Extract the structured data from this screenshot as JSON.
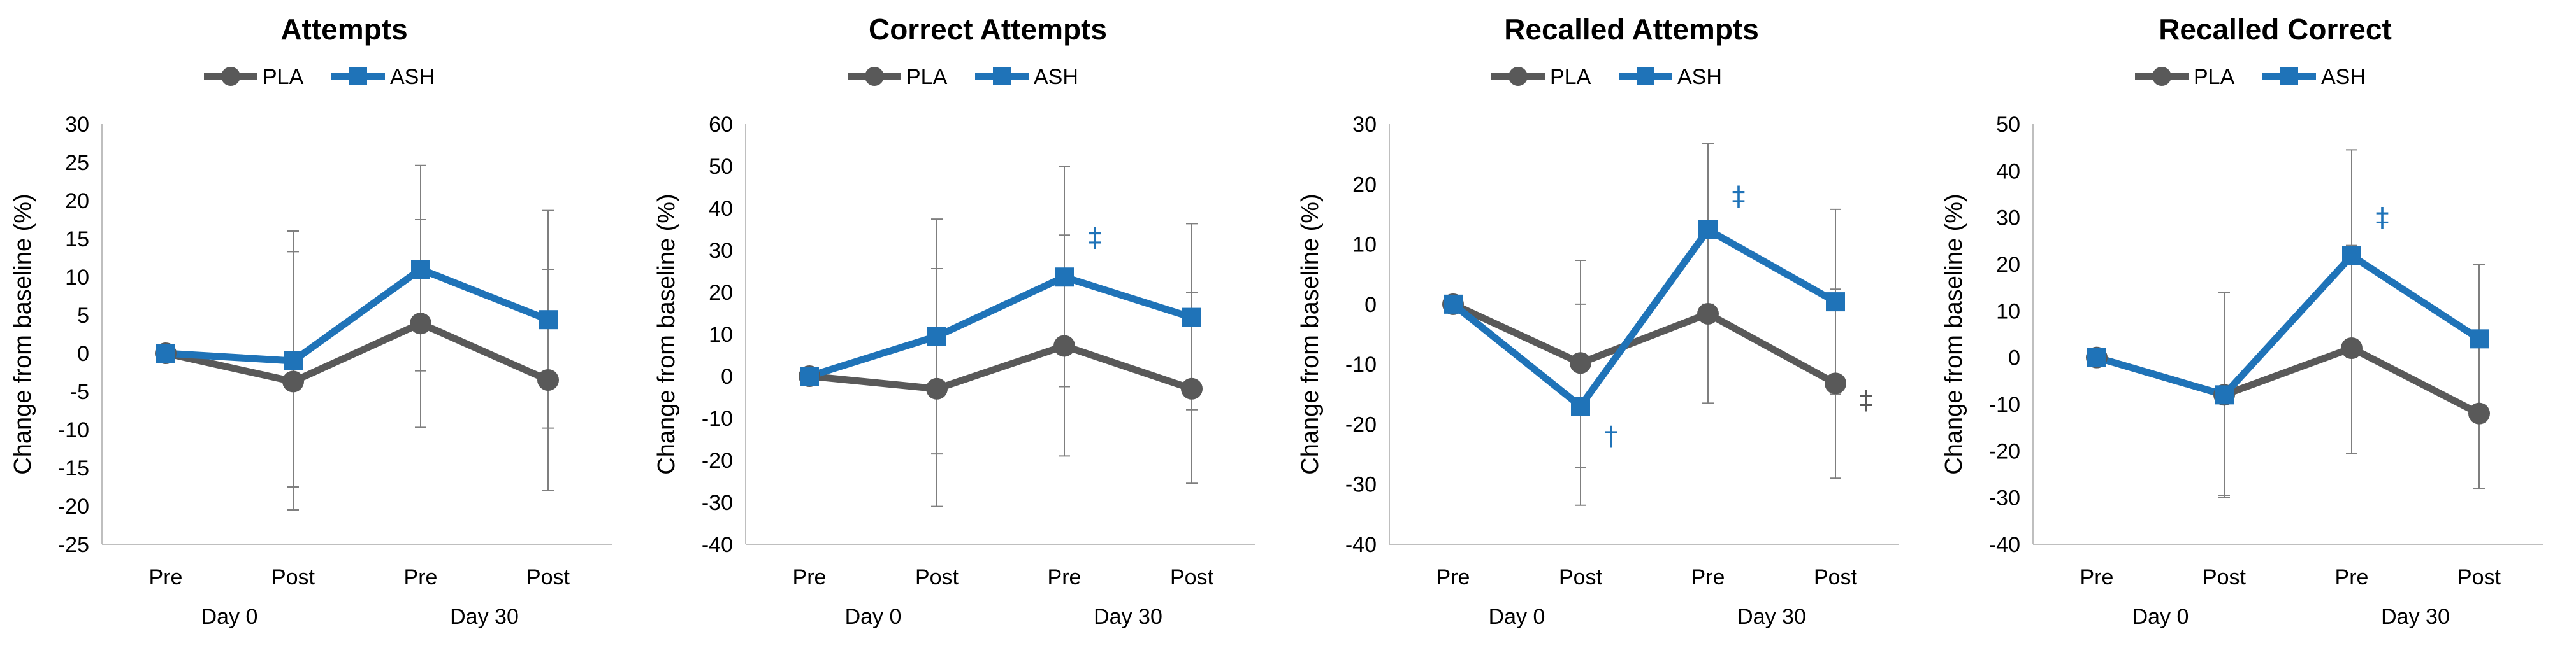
{
  "figure": {
    "series_colors": {
      "PLA": "#595959",
      "ASH": "#1F73B8"
    },
    "annotation_color_blue": "#1F73B8",
    "annotation_color_gray": "#595959"
  },
  "chart_data": [
    {
      "type": "line",
      "title": "Attempts",
      "xlabel": "",
      "ylabel": "Change from baseline (%)",
      "categories": [
        "Pre",
        "Post",
        "Pre",
        "Post"
      ],
      "groups": [
        "Day 0",
        "Day 30"
      ],
      "ylim": [
        -25,
        30
      ],
      "ystep": 5,
      "grid": false,
      "legend": "top-center",
      "series": [
        {
          "name": "PLA",
          "values": [
            0,
            -3.7,
            3.9,
            -3.5
          ],
          "err_low": [
            0,
            -20.5,
            -9.7,
            -18
          ],
          "err_high": [
            0,
            16,
            17.5,
            11
          ]
        },
        {
          "name": "ASH",
          "values": [
            0,
            -1,
            11,
            4.4
          ],
          "err_low": [
            0,
            -17.5,
            -2.3,
            -9.8
          ],
          "err_high": [
            0,
            13.3,
            24.6,
            18.7
          ]
        }
      ],
      "annotations": []
    },
    {
      "type": "line",
      "title": "Correct Attempts",
      "xlabel": "",
      "ylabel": "Change from baseline (%)",
      "categories": [
        "Pre",
        "Post",
        "Pre",
        "Post"
      ],
      "groups": [
        "Day 0",
        "Day 30"
      ],
      "ylim": [
        -40,
        60
      ],
      "ystep": 10,
      "grid": false,
      "legend": "top-center",
      "series": [
        {
          "name": "PLA",
          "values": [
            0,
            -3,
            7.2,
            -3
          ],
          "err_low": [
            0,
            -31,
            -19,
            -25.5
          ],
          "err_high": [
            0,
            25.6,
            33.6,
            20
          ]
        },
        {
          "name": "ASH",
          "values": [
            0,
            9.5,
            23.6,
            14
          ],
          "err_low": [
            0,
            -18.5,
            -2.5,
            -8
          ],
          "err_high": [
            0,
            37.4,
            50,
            36.3
          ]
        }
      ],
      "annotations": [
        {
          "text": "‡",
          "series": "ASH",
          "category_index": 2,
          "y": 33,
          "color": "blue"
        }
      ]
    },
    {
      "type": "line",
      "title": "Recalled Attempts",
      "xlabel": "",
      "ylabel": "Change from baseline (%)",
      "categories": [
        "Pre",
        "Post",
        "Pre",
        "Post"
      ],
      "groups": [
        "Day 0",
        "Day 30"
      ],
      "ylim": [
        -40,
        30
      ],
      "ystep": 10,
      "grid": false,
      "legend": "top-center",
      "series": [
        {
          "name": "PLA",
          "values": [
            0,
            -9.8,
            -1.6,
            -13.2
          ],
          "err_low": [
            0,
            -33.5,
            -16.5,
            -29
          ],
          "err_high": [
            0,
            7.3,
            0,
            2.5
          ]
        },
        {
          "name": "ASH",
          "values": [
            0,
            -17,
            12.4,
            0.4
          ],
          "err_low": [
            0,
            -27.2,
            -2,
            -15
          ],
          "err_high": [
            0,
            0,
            26.8,
            15.8
          ]
        }
      ],
      "annotations": [
        {
          "text": "†",
          "series": "ASH",
          "category_index": 1,
          "y": -22,
          "color": "blue"
        },
        {
          "text": "‡",
          "series": "ASH",
          "category_index": 2,
          "y": 18,
          "color": "blue"
        },
        {
          "text": "‡",
          "series": "PLA",
          "category_index": 3,
          "y": -16,
          "color": "gray"
        }
      ]
    },
    {
      "type": "line",
      "title": "Recalled Correct",
      "xlabel": "",
      "ylabel": "Change from baseline (%)",
      "categories": [
        "Pre",
        "Post",
        "Pre",
        "Post"
      ],
      "groups": [
        "Day 0",
        "Day 30"
      ],
      "ylim": [
        -40,
        50
      ],
      "ystep": 10,
      "grid": false,
      "legend": "top-center",
      "series": [
        {
          "name": "PLA",
          "values": [
            0,
            -8,
            2,
            -12
          ],
          "err_low": [
            0,
            -29.5,
            -20.5,
            -28
          ],
          "err_high": [
            0,
            14,
            24,
            4
          ]
        },
        {
          "name": "ASH",
          "values": [
            0,
            -8,
            21.8,
            4
          ],
          "err_low": [
            0,
            -30,
            0,
            -12
          ],
          "err_high": [
            0,
            14,
            44.5,
            20
          ]
        }
      ],
      "annotations": [
        {
          "text": "‡",
          "series": "ASH",
          "category_index": 2,
          "y": 30,
          "color": "blue"
        }
      ]
    }
  ]
}
